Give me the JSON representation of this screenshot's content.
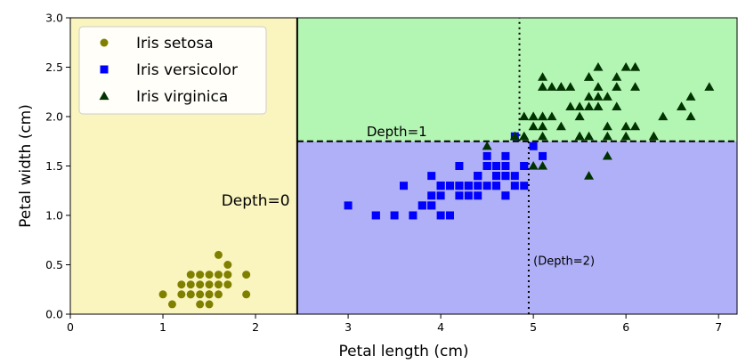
{
  "chart_data": {
    "type": "scatter",
    "title": "",
    "xlabel": "Petal length (cm)",
    "ylabel": "Petal width (cm)",
    "xlim": [
      0,
      7.2
    ],
    "ylim": [
      0,
      3.0
    ],
    "xticks": [
      0,
      1,
      2,
      3,
      4,
      5,
      6,
      7
    ],
    "yticks": [
      "0.0",
      "0.5",
      "1.0",
      "1.5",
      "2.0",
      "2.5",
      "3.0"
    ],
    "legend_position": "top-left",
    "regions": [
      {
        "x0": 0,
        "x1": 2.45,
        "y0": 0,
        "y1": 3.0,
        "color": "#faf5bf"
      },
      {
        "x0": 2.45,
        "x1": 7.2,
        "y0": 0,
        "y1": 1.75,
        "color": "#b0b0f8"
      },
      {
        "x0": 2.45,
        "x1": 7.2,
        "y0": 1.75,
        "y1": 3.0,
        "color": "#b3f5b3"
      }
    ],
    "boundaries": [
      {
        "axis": "x",
        "value": 2.45,
        "y0": 0,
        "y1": 3.0,
        "style": "solid",
        "width": 2
      },
      {
        "axis": "y",
        "value": 1.75,
        "x0": 2.45,
        "x1": 7.2,
        "style": "dashed",
        "width": 2
      },
      {
        "axis": "x",
        "value": 4.95,
        "y0": 0,
        "y1": 1.75,
        "style": "dotted",
        "width": 2
      },
      {
        "axis": "x",
        "value": 4.85,
        "y0": 1.75,
        "y1": 3.0,
        "style": "dotted",
        "width": 2
      }
    ],
    "annotations": [
      {
        "text": "Depth=0",
        "x": 2.37,
        "y": 1.1,
        "anchor": "end",
        "size": 17
      },
      {
        "text": "Depth=1",
        "x": 3.2,
        "y": 1.8,
        "anchor": "start",
        "size": 15
      },
      {
        "text": "(Depth=2)",
        "x": 5.0,
        "y": 0.5,
        "anchor": "start",
        "size": 13
      }
    ],
    "series": [
      {
        "name": "Iris setosa",
        "marker": "circle",
        "color": "#808000",
        "points": [
          [
            1.4,
            0.2
          ],
          [
            1.3,
            0.2
          ],
          [
            1.5,
            0.2
          ],
          [
            1.7,
            0.4
          ],
          [
            1.4,
            0.3
          ],
          [
            1.5,
            0.1
          ],
          [
            1.6,
            0.2
          ],
          [
            1.1,
            0.1
          ],
          [
            1.2,
            0.2
          ],
          [
            1.0,
            0.2
          ],
          [
            1.7,
            0.5
          ],
          [
            1.9,
            0.2
          ],
          [
            1.6,
            0.4
          ],
          [
            1.5,
            0.4
          ],
          [
            1.3,
            0.4
          ],
          [
            1.4,
            0.1
          ],
          [
            1.6,
            0.6
          ],
          [
            1.9,
            0.4
          ],
          [
            1.3,
            0.3
          ],
          [
            1.5,
            0.3
          ],
          [
            1.6,
            0.3
          ],
          [
            1.4,
            0.4
          ],
          [
            1.7,
            0.3
          ],
          [
            1.2,
            0.3
          ],
          [
            1.5,
            0.2
          ],
          [
            1.3,
            0.2
          ]
        ]
      },
      {
        "name": "Iris versicolor",
        "marker": "square",
        "color": "#0000ff",
        "points": [
          [
            4.7,
            1.4
          ],
          [
            4.5,
            1.5
          ],
          [
            4.9,
            1.5
          ],
          [
            4.0,
            1.3
          ],
          [
            4.6,
            1.5
          ],
          [
            4.5,
            1.3
          ],
          [
            4.7,
            1.6
          ],
          [
            3.3,
            1.0
          ],
          [
            4.6,
            1.3
          ],
          [
            3.9,
            1.4
          ],
          [
            3.5,
            1.0
          ],
          [
            4.2,
            1.5
          ],
          [
            4.0,
            1.0
          ],
          [
            4.7,
            1.4
          ],
          [
            3.6,
            1.3
          ],
          [
            4.4,
            1.4
          ],
          [
            4.5,
            1.5
          ],
          [
            4.1,
            1.0
          ],
          [
            4.5,
            1.5
          ],
          [
            3.9,
            1.1
          ],
          [
            4.8,
            1.8
          ],
          [
            4.0,
            1.3
          ],
          [
            4.9,
            1.5
          ],
          [
            4.7,
            1.2
          ],
          [
            4.3,
            1.3
          ],
          [
            4.4,
            1.4
          ],
          [
            4.8,
            1.4
          ],
          [
            5.0,
            1.7
          ],
          [
            4.5,
            1.5
          ],
          [
            3.8,
            1.1
          ],
          [
            3.7,
            1.0
          ],
          [
            3.9,
            1.2
          ],
          [
            5.1,
            1.6
          ],
          [
            4.5,
            1.5
          ],
          [
            4.5,
            1.6
          ],
          [
            4.7,
            1.5
          ],
          [
            4.4,
            1.3
          ],
          [
            4.1,
            1.3
          ],
          [
            4.0,
            1.3
          ],
          [
            4.4,
            1.2
          ],
          [
            4.6,
            1.4
          ],
          [
            4.0,
            1.2
          ],
          [
            3.3,
            1.0
          ],
          [
            4.2,
            1.3
          ],
          [
            4.2,
            1.2
          ],
          [
            4.3,
            1.3
          ],
          [
            3.0,
            1.1
          ],
          [
            4.1,
            1.3
          ],
          [
            3.9,
            1.1
          ],
          [
            4.6,
            1.3
          ],
          [
            4.7,
            1.2
          ],
          [
            4.4,
            1.4
          ],
          [
            3.8,
            1.1
          ],
          [
            4.3,
            1.2
          ],
          [
            4.2,
            1.3
          ],
          [
            4.8,
            1.3
          ],
          [
            4.9,
            1.3
          ],
          [
            4.6,
            1.4
          ]
        ]
      },
      {
        "name": "Iris virginica",
        "marker": "triangle",
        "color": "#003300",
        "points": [
          [
            6.0,
            2.5
          ],
          [
            5.1,
            1.9
          ],
          [
            5.9,
            2.1
          ],
          [
            5.6,
            1.8
          ],
          [
            5.8,
            2.2
          ],
          [
            6.6,
            2.1
          ],
          [
            4.5,
            1.7
          ],
          [
            6.3,
            1.8
          ],
          [
            5.8,
            1.8
          ],
          [
            6.1,
            2.5
          ],
          [
            5.1,
            2.0
          ],
          [
            5.3,
            1.9
          ],
          [
            5.5,
            2.1
          ],
          [
            5.0,
            2.0
          ],
          [
            5.1,
            2.4
          ],
          [
            5.3,
            2.3
          ],
          [
            5.5,
            1.8
          ],
          [
            6.7,
            2.2
          ],
          [
            6.9,
            2.3
          ],
          [
            5.0,
            1.5
          ],
          [
            5.7,
            2.3
          ],
          [
            4.9,
            2.0
          ],
          [
            6.7,
            2.0
          ],
          [
            4.9,
            1.8
          ],
          [
            5.7,
            2.1
          ],
          [
            6.0,
            1.8
          ],
          [
            4.8,
            1.8
          ],
          [
            5.8,
            1.6
          ],
          [
            6.1,
            1.9
          ],
          [
            6.4,
            2.0
          ],
          [
            5.6,
            2.2
          ],
          [
            5.1,
            1.5
          ],
          [
            5.6,
            1.4
          ],
          [
            6.1,
            2.3
          ],
          [
            5.6,
            2.4
          ],
          [
            5.5,
            1.8
          ],
          [
            4.8,
            1.8
          ],
          [
            5.4,
            2.1
          ],
          [
            5.6,
            2.4
          ],
          [
            5.1,
            2.3
          ],
          [
            5.9,
            2.3
          ],
          [
            5.7,
            2.5
          ],
          [
            5.2,
            2.3
          ],
          [
            5.0,
            1.9
          ],
          [
            5.2,
            2.0
          ],
          [
            5.4,
            2.3
          ],
          [
            5.1,
            1.8
          ],
          [
            6.3,
            1.8
          ],
          [
            5.6,
            2.1
          ],
          [
            5.5,
            2.0
          ],
          [
            5.8,
            1.9
          ],
          [
            5.3,
            2.3
          ],
          [
            6.6,
            2.1
          ],
          [
            5.9,
            2.4
          ],
          [
            5.7,
            2.2
          ],
          [
            6.0,
            1.9
          ],
          [
            6.1,
            2.5
          ],
          [
            4.9,
            1.8
          ],
          [
            5.1,
            2.0
          ],
          [
            5.0,
            2.0
          ]
        ]
      }
    ]
  }
}
